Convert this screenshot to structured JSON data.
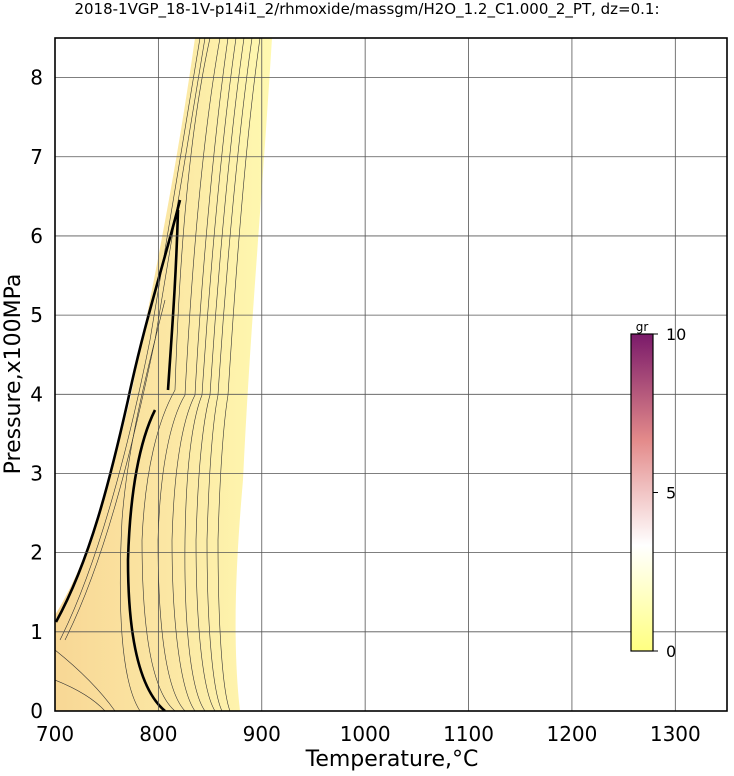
{
  "chart_data": {
    "type": "contour",
    "title": "2018-1VGP_18-1V-p14i1_2/rhmoxide/massgm/H2O_1.2_C1.000_2_PT, dz=0.1:",
    "xlabel": "Temperature,°C",
    "ylabel": "Pressure,x100MPa",
    "xlim": [
      700,
      1350
    ],
    "ylim": [
      0,
      8.5
    ],
    "xticks": [
      700,
      800,
      900,
      1000,
      1100,
      1200,
      1300
    ],
    "yticks": [
      0,
      1,
      2,
      3,
      4,
      5,
      6,
      7,
      8
    ],
    "grid": true,
    "colorbar": {
      "label": "gr",
      "lim": [
        0,
        10
      ],
      "ticks": [
        0,
        5,
        10
      ],
      "colors": [
        "#ffff80",
        "#ffffff",
        "#e38a8a",
        "#7a1a6a"
      ]
    }
  }
}
